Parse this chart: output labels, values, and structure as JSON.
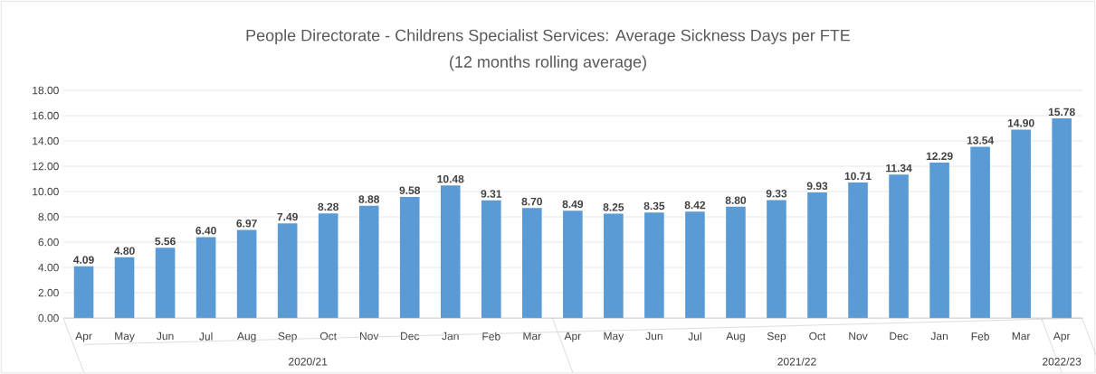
{
  "chart_data": {
    "type": "bar",
    "title": "People Directorate - Childrens Specialist Services: Average Sickness Days per FTE",
    "subtitle": "(12 months rolling average)",
    "categories": [
      "Apr",
      "May",
      "Jun",
      "Jul",
      "Aug",
      "Sep",
      "Oct",
      "Nov",
      "Dec",
      "Jan",
      "Feb",
      "Mar",
      "Apr",
      "May",
      "Jun",
      "Jul",
      "Aug",
      "Sep",
      "Oct",
      "Nov",
      "Dec",
      "Jan",
      "Feb",
      "Mar",
      "Apr"
    ],
    "values": [
      4.09,
      4.8,
      5.56,
      6.4,
      6.97,
      7.49,
      8.28,
      8.88,
      9.58,
      10.48,
      9.31,
      8.7,
      8.49,
      8.25,
      8.35,
      8.42,
      8.8,
      9.33,
      9.93,
      10.71,
      11.34,
      12.29,
      13.54,
      14.9,
      15.78
    ],
    "value_labels": [
      "4.09",
      "4.80",
      "5.56",
      "6.40",
      "6.97",
      "7.49",
      "8.28",
      "8.88",
      "9.58",
      "10.48",
      "9.31",
      "8.70",
      "8.49",
      "8.25",
      "8.35",
      "8.42",
      "8.80",
      "9.33",
      "9.93",
      "10.71",
      "11.34",
      "12.29",
      "13.54",
      "14.90",
      "15.78"
    ],
    "color": "#5b9bd5",
    "ylim": [
      0,
      18
    ],
    "yticks": [
      {
        "value": 0,
        "label": "0.00"
      },
      {
        "value": 2,
        "label": "2.00"
      },
      {
        "value": 4,
        "label": "4.00"
      },
      {
        "value": 6,
        "label": "6.00"
      },
      {
        "value": 8,
        "label": "8.00"
      },
      {
        "value": 10,
        "label": "10.00"
      },
      {
        "value": 12,
        "label": "12.00"
      },
      {
        "value": 14,
        "label": "14.00"
      },
      {
        "value": 16,
        "label": "16.00"
      },
      {
        "value": 18,
        "label": "18.00"
      }
    ],
    "grid": "y",
    "annotations": [
      "2020/21",
      "2021/22",
      "2022/23"
    ]
  }
}
